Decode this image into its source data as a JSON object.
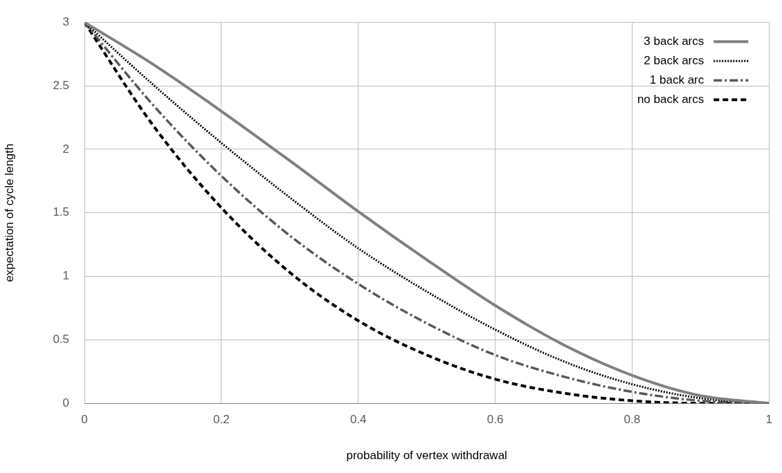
{
  "chart_data": {
    "type": "line",
    "xlabel": "probability of vertex withdrawal",
    "ylabel": "expectation of cycle length",
    "x": [
      0,
      0.1,
      0.2,
      0.3,
      0.4,
      0.5,
      0.6,
      0.7,
      0.8,
      0.9,
      1
    ],
    "series": [
      {
        "name": "3 back arcs",
        "color": "#808080",
        "line_style": "solid",
        "values": [
          3,
          2.67,
          2.3,
          1.91,
          1.51,
          1.13,
          0.77,
          0.46,
          0.22,
          0.06,
          0
        ]
      },
      {
        "name": "2 back arcs",
        "color": "#000000",
        "line_style": "dotted",
        "values": [
          3,
          2.51,
          2.05,
          1.62,
          1.22,
          0.88,
          0.58,
          0.33,
          0.15,
          0.04,
          0
        ]
      },
      {
        "name": "1 back arc",
        "color": "#595959",
        "line_style": "dashdot",
        "values": [
          3,
          2.35,
          1.79,
          1.32,
          0.94,
          0.63,
          0.38,
          0.21,
          0.09,
          0.02,
          0
        ]
      },
      {
        "name": "no back arcs",
        "color": "#000000",
        "line_style": "dashed",
        "values": [
          3,
          2.19,
          1.54,
          1.03,
          0.65,
          0.38,
          0.19,
          0.08,
          0.02,
          0,
          0
        ]
      }
    ],
    "xlim": [
      0,
      1
    ],
    "xticks": [
      0,
      0.2,
      0.4,
      0.6,
      0.8,
      1
    ],
    "ylim": [
      0,
      3
    ],
    "yticks": [
      0,
      0.5,
      1,
      1.5,
      2,
      2.5,
      3
    ],
    "grid": true,
    "legend": "top right",
    "marker": "none"
  }
}
